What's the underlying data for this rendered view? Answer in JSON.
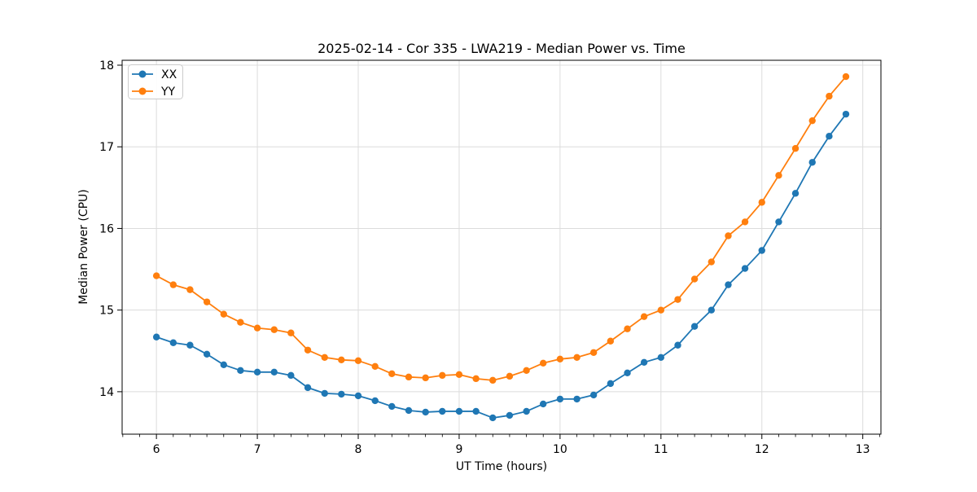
{
  "chart_data": {
    "type": "line",
    "title": "2025-02-14 - Cor 335 - LWA219 - Median Power vs. Time",
    "xlabel": "UT Time (hours)",
    "ylabel": "Median Power (CPU)",
    "xlim": [
      5.66,
      13.18
    ],
    "ylim": [
      13.48,
      18.06
    ],
    "xticks": [
      6,
      7,
      8,
      9,
      10,
      11,
      12,
      13
    ],
    "xtick_labels": [
      "6",
      "7",
      "8",
      "9",
      "10",
      "11",
      "12",
      "13"
    ],
    "yticks": [
      14,
      15,
      16,
      17,
      18
    ],
    "ytick_labels": [
      "14",
      "15",
      "16",
      "17",
      "18"
    ],
    "x_minor_interval": 0.1666667,
    "grid": true,
    "legend": {
      "position": "upper-left",
      "entries": [
        "XX",
        "YY"
      ]
    },
    "colors": {
      "series_xx": "#1f77b4",
      "series_yy": "#ff7f0e",
      "grid": "#dcdcdc",
      "spine": "#000000",
      "background": "#ffffff",
      "legend_border": "#cccccc"
    },
    "x": [
      6.0,
      6.167,
      6.333,
      6.5,
      6.667,
      6.833,
      7.0,
      7.167,
      7.333,
      7.5,
      7.667,
      7.833,
      8.0,
      8.167,
      8.333,
      8.5,
      8.667,
      8.833,
      9.0,
      9.167,
      9.333,
      9.5,
      9.667,
      9.833,
      10.0,
      10.167,
      10.333,
      10.5,
      10.667,
      10.833,
      11.0,
      11.167,
      11.333,
      11.5,
      11.667,
      11.833,
      12.0,
      12.167,
      12.333,
      12.5,
      12.667,
      12.833
    ],
    "series": [
      {
        "name": "XX",
        "color": "#1f77b4",
        "values": [
          14.67,
          14.6,
          14.57,
          14.46,
          14.33,
          14.26,
          14.24,
          14.24,
          14.2,
          14.05,
          13.98,
          13.97,
          13.95,
          13.89,
          13.82,
          13.77,
          13.75,
          13.76,
          13.76,
          13.76,
          13.68,
          13.71,
          13.76,
          13.85,
          13.91,
          13.91,
          13.96,
          14.1,
          14.23,
          14.36,
          14.42,
          14.57,
          14.8,
          15.0,
          15.31,
          15.51,
          15.73,
          16.08,
          16.43,
          16.81,
          17.13,
          17.4
        ]
      },
      {
        "name": "YY",
        "color": "#ff7f0e",
        "values": [
          15.42,
          15.31,
          15.25,
          15.1,
          14.95,
          14.85,
          14.78,
          14.76,
          14.72,
          14.51,
          14.42,
          14.39,
          14.38,
          14.31,
          14.22,
          14.18,
          14.17,
          14.2,
          14.21,
          14.16,
          14.14,
          14.19,
          14.26,
          14.35,
          14.4,
          14.42,
          14.48,
          14.62,
          14.77,
          14.92,
          15.0,
          15.13,
          15.38,
          15.59,
          15.91,
          16.08,
          16.32,
          16.65,
          16.98,
          17.32,
          17.62,
          17.86
        ]
      }
    ]
  }
}
